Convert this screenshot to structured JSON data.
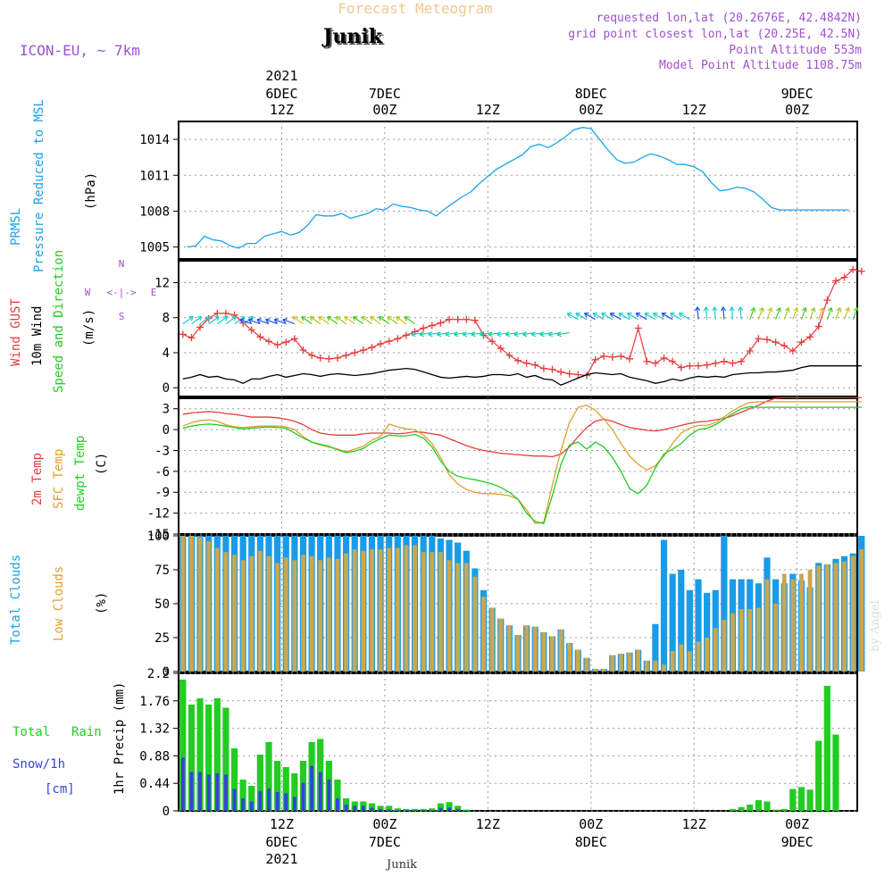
{
  "header": {
    "title": "Forecast Meteogram",
    "location": "Junik",
    "model": "ICON-EU, ~ 7km",
    "requested": "requested lon,lat (20.2676E, 42.4842N)",
    "gridpoint": "grid point closest lon,lat (20.25E, 42.5N)",
    "altitude": "Point Altitude 553m",
    "model_altitude": "Model Point Altitude 1108.75m"
  },
  "footer": {
    "location": "Junik",
    "credit": "by Angel"
  },
  "time_axis": {
    "top_ticks": [
      {
        "t": 12,
        "l1": "2021",
        "l2": "6DEC",
        "l3": "12Z"
      },
      {
        "t": 24,
        "l1": "",
        "l2": "7DEC",
        "l3": "00Z"
      },
      {
        "t": 36,
        "l1": "",
        "l2": "",
        "l3": "12Z"
      },
      {
        "t": 48,
        "l1": "",
        "l2": "8DEC",
        "l3": "00Z"
      },
      {
        "t": 60,
        "l1": "",
        "l2": "",
        "l3": "12Z"
      },
      {
        "t": 72,
        "l1": "",
        "l2": "9DEC",
        "l3": "00Z"
      }
    ],
    "bottom_ticks": [
      {
        "t": 12,
        "l1": "12Z",
        "l2": "6DEC",
        "l3": "2021"
      },
      {
        "t": 24,
        "l1": "00Z",
        "l2": "7DEC",
        "l3": ""
      },
      {
        "t": 36,
        "l1": "12Z",
        "l2": "",
        "l3": ""
      },
      {
        "t": 48,
        "l1": "00Z",
        "l2": "8DEC",
        "l3": ""
      },
      {
        "t": 60,
        "l1": "12Z",
        "l2": "",
        "l3": ""
      },
      {
        "t": 72,
        "l1": "00Z",
        "l2": "9DEC",
        "l3": ""
      }
    ]
  },
  "panels": {
    "pressure": {
      "label1": "PRMSL",
      "label2": "Pressure Reduced to MSL",
      "unit": "(hPa)",
      "ticks": [
        1005,
        1008,
        1011,
        1014
      ]
    },
    "wind": {
      "label1": "Wind GUST",
      "label2": "10m Wind",
      "label3": "Speed and Direction",
      "unit": "(m/s)",
      "ticks": [
        0,
        4,
        8,
        12
      ],
      "compass": {
        "n": "N",
        "s": "S",
        "w": "W",
        "e": "E"
      }
    },
    "temp": {
      "label1": "2m Temp",
      "label2": "SFC Temp",
      "label3": "dewpt Temp",
      "unit": "(C)",
      "ticks": [
        3,
        0,
        -3,
        -6,
        -9,
        -12,
        -15
      ]
    },
    "clouds": {
      "label1": "Total Clouds",
      "label2": "Low Clouds",
      "unit": "(%)",
      "ticks": [
        0,
        25,
        50,
        75,
        100
      ]
    },
    "precip": {
      "label1": "Total",
      "label2": "Rain",
      "label3": "Snow/1h",
      "label4": "[cm]",
      "unit": "1hr Precip (mm)",
      "ticks": [
        "0",
        "0.44",
        "0.88",
        "1.32",
        "1.76",
        "2.2"
      ]
    }
  },
  "colors": {
    "pressure": "#1aa3e8",
    "gust": "#e83c3c",
    "wind": "#000000",
    "temp2m": "#e83c3c",
    "sfc": "#e0a030",
    "dewpt": "#22cc22",
    "total_clouds": "#1a9be8",
    "low_clouds": "#c8a850",
    "rain": "#22cc22",
    "snow": "#3344dd",
    "purple": "#a050d0",
    "grid": "#999999"
  },
  "chart_data": [
    {
      "type": "line",
      "title": "PRMSL Pressure Reduced to MSL",
      "ylabel": "(hPa)",
      "ylim": [
        1004,
        1015.5
      ],
      "x_hours_from_6DEC00Z": [
        1,
        2,
        3,
        4,
        5,
        6,
        7,
        8,
        9,
        10,
        11,
        12,
        13,
        14,
        15,
        16,
        17,
        18,
        19,
        20,
        21,
        22,
        23,
        24,
        25,
        26,
        27,
        28,
        29,
        30,
        31,
        32,
        33,
        34,
        35,
        36,
        37,
        38,
        39,
        40,
        41,
        42,
        43,
        44,
        45,
        46,
        47,
        48,
        49,
        50,
        51,
        52,
        53,
        54,
        55,
        56,
        57,
        58,
        59,
        60,
        61,
        62,
        63,
        64,
        65,
        66,
        67,
        68,
        69,
        70,
        71,
        72,
        73,
        74,
        75,
        76,
        77,
        78
      ],
      "values": [
        1005.0,
        1005.1,
        1005.9,
        1005.6,
        1005.5,
        1005.1,
        1004.9,
        1005.3,
        1005.3,
        1005.9,
        1006.1,
        1006.3,
        1006.0,
        1006.2,
        1006.8,
        1007.7,
        1007.6,
        1007.6,
        1007.8,
        1007.4,
        1007.6,
        1007.8,
        1008.2,
        1008.1,
        1008.6,
        1008.4,
        1008.3,
        1008.1,
        1008.0,
        1007.6,
        1008.2,
        1008.7,
        1009.2,
        1009.6,
        1010.3,
        1010.9,
        1011.5,
        1011.9,
        1012.3,
        1012.7,
        1013.4,
        1013.6,
        1013.3,
        1013.7,
        1014.2,
        1014.8,
        1015.0,
        1014.9,
        1014.0,
        1013.1,
        1012.3,
        1012.0,
        1012.1,
        1012.5,
        1012.8,
        1012.6,
        1012.3,
        1011.9,
        1011.9,
        1011.7,
        1011.3,
        1010.4,
        1009.7,
        1009.8,
        1010.0,
        1009.9,
        1009.6,
        1009.0,
        1008.3,
        1008.1,
        1008.1,
        1008.1,
        1008.1,
        1008.1,
        1008.1,
        1008.1,
        1008.1,
        1008.1
      ]
    },
    {
      "type": "line",
      "title": "Wind GUST / 10m Wind Speed and Direction",
      "ylabel": "(m/s)",
      "ylim": [
        -1,
        14.5
      ],
      "series": [
        {
          "name": "Wind GUST",
          "values": [
            6.1,
            5.7,
            6.9,
            7.9,
            8.5,
            8.5,
            8.3,
            7.4,
            6.6,
            5.8,
            5.3,
            4.9,
            5.2,
            5.6,
            4.3,
            3.7,
            3.4,
            3.3,
            3.4,
            3.7,
            4.0,
            4.3,
            4.6,
            5.0,
            5.3,
            5.6,
            6.0,
            6.4,
            6.8,
            7.1,
            7.4,
            7.8,
            7.8,
            7.8,
            7.7,
            6.0,
            5.3,
            4.5,
            3.7,
            3.1,
            2.8,
            2.6,
            2.2,
            2.1,
            1.8,
            1.6,
            1.5,
            1.4,
            3.2,
            3.6,
            3.5,
            3.6,
            3.3,
            6.8,
            3.0,
            2.8,
            3.4,
            3.0,
            2.3,
            2.5,
            2.5,
            2.6,
            2.8,
            3.0,
            2.8,
            3.0,
            4.2,
            5.6,
            5.5,
            5.2,
            4.8,
            4.2,
            5.2,
            5.8,
            7.0,
            10.0,
            12.2,
            12.6,
            13.5,
            13.3
          ]
        },
        {
          "name": "10m Wind",
          "values": [
            1.0,
            1.2,
            1.5,
            1.2,
            1.3,
            1.0,
            0.9,
            0.5,
            1.0,
            1.0,
            1.3,
            1.5,
            1.2,
            1.4,
            1.6,
            1.5,
            1.3,
            1.5,
            1.6,
            1.5,
            1.4,
            1.5,
            1.6,
            1.8,
            2.0,
            2.1,
            2.2,
            2.1,
            1.8,
            1.5,
            1.2,
            1.1,
            1.2,
            1.3,
            1.2,
            1.3,
            1.5,
            1.5,
            1.4,
            1.6,
            1.2,
            1.4,
            1.0,
            0.9,
            0.3,
            0.7,
            1.1,
            1.5,
            1.7,
            1.6,
            1.5,
            1.6,
            1.2,
            1.0,
            0.8,
            0.5,
            0.7,
            1.0,
            0.8,
            1.1,
            1.3,
            1.2,
            1.3,
            1.2,
            1.5,
            1.6,
            1.7,
            1.7,
            1.8,
            1.8,
            1.9,
            2.0,
            2.3,
            2.5,
            2.5,
            2.5,
            2.5,
            2.5,
            2.5,
            2.5
          ]
        }
      ]
    },
    {
      "type": "line",
      "title": "2m Temp / SFC Temp / dewpt Temp",
      "ylabel": "(C)",
      "ylim": [
        -15,
        4.5
      ],
      "series": [
        {
          "name": "2m Temp",
          "values": [
            2.2,
            2.4,
            2.5,
            2.6,
            2.5,
            2.3,
            2.2,
            2.0,
            1.8,
            1.8,
            1.8,
            1.7,
            1.5,
            1.2,
            0.7,
            0.0,
            -0.5,
            -0.7,
            -0.8,
            -0.8,
            -0.8,
            -0.6,
            -0.5,
            -0.5,
            -0.5,
            -0.6,
            -0.5,
            -0.3,
            -0.4,
            -0.6,
            -0.8,
            -1.3,
            -1.8,
            -2.3,
            -2.7,
            -3.0,
            -3.2,
            -3.4,
            -3.5,
            -3.6,
            -3.7,
            -3.8,
            -3.8,
            -3.9,
            -3.5,
            -2.5,
            -1.0,
            0.3,
            1.2,
            1.5,
            1.2,
            0.7,
            0.3,
            0.1,
            -0.1,
            -0.2,
            0.0,
            0.3,
            0.6,
            0.9,
            1.1,
            1.2,
            1.4,
            1.6,
            2.0,
            2.5,
            3.0,
            3.5,
            4.1,
            4.5,
            4.6,
            4.6,
            4.6,
            4.6,
            4.6,
            4.6,
            4.6,
            4.6,
            4.6,
            4.6
          ]
        },
        {
          "name": "SFC Temp",
          "values": [
            0.5,
            1.0,
            1.3,
            1.4,
            1.2,
            0.7,
            0.4,
            0.3,
            0.4,
            0.5,
            0.5,
            0.5,
            0.4,
            0.0,
            -1.0,
            -1.8,
            -2.2,
            -2.5,
            -2.8,
            -3.2,
            -2.8,
            -2.4,
            -1.5,
            -1.0,
            0.8,
            0.4,
            0.1,
            0.0,
            -0.8,
            -2.0,
            -4.0,
            -6.5,
            -7.8,
            -8.6,
            -9.0,
            -9.2,
            -9.2,
            -9.3,
            -9.5,
            -10.0,
            -11.5,
            -13.5,
            -13.3,
            -8.0,
            -3.0,
            1.0,
            3.2,
            3.5,
            2.8,
            1.5,
            0.0,
            -2.0,
            -3.8,
            -5.0,
            -5.8,
            -5.2,
            -3.8,
            -2.0,
            -0.5,
            0.2,
            0.6,
            0.6,
            1.0,
            1.8,
            2.7,
            3.4,
            3.9,
            4.0,
            4.0,
            4.0,
            4.0,
            4.0,
            4.0,
            4.0,
            4.0,
            4.0,
            4.0,
            4.0,
            4.0,
            4.0
          ]
        },
        {
          "name": "dewpt Temp",
          "values": [
            0.2,
            0.5,
            0.7,
            0.8,
            0.7,
            0.5,
            0.3,
            0.1,
            0.2,
            0.3,
            0.4,
            0.3,
            0.2,
            -0.5,
            -1.2,
            -1.8,
            -2.1,
            -2.4,
            -2.9,
            -3.3,
            -3.1,
            -2.7,
            -1.9,
            -1.3,
            -0.8,
            -0.9,
            -0.9,
            -0.7,
            -1.2,
            -2.5,
            -4.5,
            -6.0,
            -6.7,
            -7.0,
            -7.2,
            -7.5,
            -7.8,
            -8.3,
            -9.0,
            -10.0,
            -12.0,
            -13.2,
            -13.5,
            -9.5,
            -5.0,
            -2.2,
            -1.8,
            -2.8,
            -1.8,
            -2.5,
            -4.0,
            -6.0,
            -8.5,
            -9.2,
            -8.0,
            -5.5,
            -3.5,
            -2.8,
            -2.0,
            -0.8,
            0.0,
            0.2,
            0.7,
            1.5,
            2.3,
            3.0,
            3.3,
            3.2,
            3.2,
            3.2,
            3.2,
            3.2,
            3.2,
            3.2,
            3.2,
            3.2,
            3.2,
            3.2,
            3.2,
            3.2
          ]
        }
      ]
    },
    {
      "type": "bar",
      "title": "Total Clouds / Low Clouds",
      "ylabel": "(%)",
      "ylim": [
        0,
        100
      ],
      "series": [
        {
          "name": "Total Clouds",
          "values": [
            100,
            100,
            100,
            100,
            100,
            100,
            100,
            100,
            100,
            100,
            100,
            100,
            100,
            100,
            100,
            100,
            100,
            100,
            100,
            100,
            100,
            100,
            100,
            100,
            100,
            100,
            100,
            100,
            100,
            100,
            98,
            97,
            95,
            89,
            76,
            60,
            47,
            39,
            34,
            27,
            34,
            33,
            29,
            26,
            31,
            21,
            16,
            10,
            2,
            2,
            12,
            13,
            14,
            16,
            8,
            35,
            97,
            72,
            75,
            60,
            68,
            58,
            60,
            100,
            68,
            68,
            68,
            65,
            84,
            68,
            65,
            72,
            67,
            62,
            80,
            79,
            83,
            85,
            87,
            100
          ]
        },
        {
          "name": "Low Clouds",
          "values": [
            100,
            100,
            99,
            96,
            91,
            88,
            86,
            82,
            85,
            89,
            85,
            80,
            84,
            82,
            86,
            85,
            82,
            84,
            83,
            87,
            90,
            89,
            90,
            90,
            91,
            91,
            93,
            93,
            88,
            88,
            88,
            82,
            80,
            80,
            70,
            55,
            47,
            39,
            34,
            27,
            34,
            33,
            29,
            26,
            31,
            21,
            16,
            10,
            2,
            2,
            12,
            13,
            14,
            16,
            8,
            8,
            5,
            15,
            20,
            15,
            22,
            25,
            32,
            38,
            43,
            46,
            46,
            47,
            68,
            50,
            72,
            68,
            72,
            75,
            78,
            79,
            80,
            81,
            85,
            90
          ]
        }
      ]
    },
    {
      "type": "bar",
      "title": "1hr Precip (mm)",
      "ylabel": "1hr Precip (mm)",
      "ylim": [
        0,
        2.2
      ],
      "series": [
        {
          "name": "Total Rain",
          "values": [
            2.1,
            1.7,
            1.8,
            1.7,
            1.8,
            1.65,
            1.0,
            0.5,
            0.4,
            0.9,
            1.1,
            0.8,
            0.7,
            0.6,
            0.8,
            1.1,
            1.15,
            0.8,
            0.5,
            0.2,
            0.15,
            0.15,
            0.12,
            0.08,
            0.08,
            0.04,
            0.03,
            0.03,
            0.03,
            0.04,
            0.12,
            0.14,
            0.08,
            0.02,
            0,
            0,
            0,
            0,
            0,
            0,
            0,
            0,
            0,
            0,
            0,
            0,
            0,
            0,
            0,
            0,
            0,
            0,
            0,
            0,
            0,
            0,
            0,
            0,
            0,
            0,
            0,
            0,
            0,
            0,
            0.03,
            0.06,
            0.1,
            0.17,
            0.15,
            0.02,
            0.03,
            0.35,
            0.38,
            0.34,
            1.12,
            2.0,
            1.22,
            0,
            0,
            0
          ]
        },
        {
          "name": "Snow/1h",
          "values": [
            0.85,
            0.62,
            0.62,
            0.58,
            0.6,
            0.58,
            0.35,
            0.2,
            0.15,
            0.32,
            0.36,
            0.3,
            0.28,
            0.22,
            0.45,
            0.72,
            0.62,
            0.5,
            0.2,
            0.1,
            0.08,
            0.08,
            0.05,
            0.03,
            0.02,
            0.01,
            0.01,
            0.01,
            0.01,
            0.01,
            0.05,
            0.05,
            0.03,
            0,
            0,
            0,
            0,
            0,
            0,
            0,
            0,
            0,
            0,
            0,
            0,
            0,
            0,
            0,
            0,
            0,
            0,
            0,
            0,
            0,
            0,
            0,
            0,
            0,
            0,
            0,
            0,
            0,
            0,
            0,
            0,
            0,
            0,
            0,
            0,
            0,
            0,
            0,
            0,
            0,
            0,
            0,
            0,
            0,
            0,
            0
          ]
        }
      ]
    }
  ]
}
